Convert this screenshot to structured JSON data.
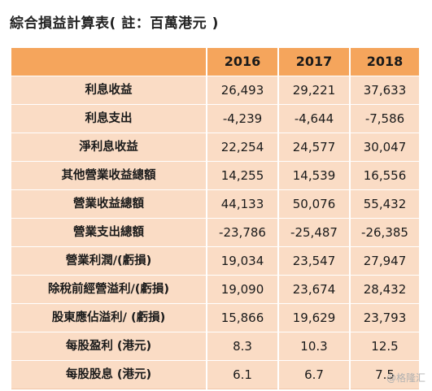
{
  "title": "綜合損益計算表( 註：百萬港元 )",
  "table": {
    "columns": [
      "",
      "2016",
      "2017",
      "2018"
    ],
    "rows": [
      {
        "label": "利息收益",
        "values": [
          "26,493",
          "29,221",
          "37,633"
        ]
      },
      {
        "label": "利息支出",
        "values": [
          "-4,239",
          "-4,644",
          "-7,586"
        ]
      },
      {
        "label": "淨利息收益",
        "values": [
          "22,254",
          "24,577",
          "30,047"
        ]
      },
      {
        "label": "其他營業收益總額",
        "values": [
          "14,255",
          "14,539",
          "16,556"
        ]
      },
      {
        "label": "營業收益總額",
        "values": [
          "44,133",
          "50,076",
          "55,432"
        ]
      },
      {
        "label": "營業支出總額",
        "values": [
          "-23,786",
          "-25,487",
          "-26,385"
        ]
      },
      {
        "label": "營業利潤/(虧損)",
        "values": [
          "19,034",
          "23,547",
          "27,947"
        ]
      },
      {
        "label": "除稅前經營溢利/(虧損)",
        "values": [
          "19,090",
          "23,674",
          "28,432"
        ]
      },
      {
        "label": "股東應佔溢利/ (虧損)",
        "values": [
          "15,866",
          "19,629",
          "23,793"
        ]
      },
      {
        "label": "每股盈利 (港元)",
        "values": [
          "8.3",
          "10.3",
          "12.5"
        ]
      },
      {
        "label": "每股股息 (港元)",
        "values": [
          "6.1",
          "6.7",
          "7.5"
        ]
      }
    ]
  },
  "watermark": "@格隆汇",
  "colors": {
    "header_bg": "#f5a55c",
    "row_bg": "#fadcc5"
  }
}
